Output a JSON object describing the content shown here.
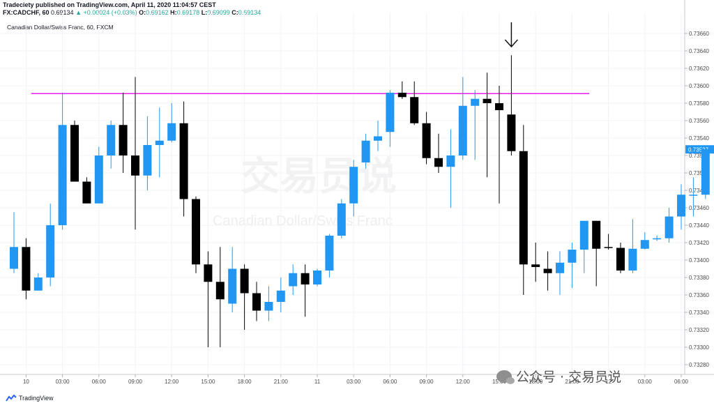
{
  "header": {
    "line1": "Tradeciety published on TradingView.com, April 11, 2020 11:04:57 CEST",
    "symbol": "FX:CADCHF, 60",
    "price": "0.69134",
    "change": "▲ +0.00024 (+0.03%)",
    "o_label": "O:",
    "o_value": "0.69162",
    "h_label": "H:",
    "h_value": "0.69178",
    "l_label": "L:",
    "l_value": "0.69099",
    "c_label": "C:",
    "c_value": "0.69134"
  },
  "chart_title": "Canadian Dollar/Swiss Franc, 60, FXCM",
  "center_watermark_cn": "交易员说",
  "center_watermark_en": "Canadian Dollar/Swiss Franc",
  "footer": {
    "brand": "TradingView"
  },
  "wechat_watermark": "公众号 · 交易员说",
  "colors": {
    "up": "#2196f3",
    "down": "#000000",
    "line": "#e91ee9",
    "price_tag": "#2196f3"
  },
  "chart_data": {
    "type": "candlestick",
    "title": "Canadian Dollar/Swiss Franc, 60, FXCM",
    "ylim": [
      0.73275,
      0.73675
    ],
    "y_ticks": [
      "0.73660",
      "0.73640",
      "0.73620",
      "0.73600",
      "0.73580",
      "0.73560",
      "0.73540",
      "0.73520",
      "0.73500",
      "0.73480",
      "0.73460",
      "0.73440",
      "0.73420",
      "0.73400",
      "0.73380",
      "0.73360",
      "0.73340",
      "0.73320",
      "0.73300",
      "0.73280"
    ],
    "x_ticks": [
      {
        "label": "10",
        "i": 1
      },
      {
        "label": "03:00",
        "i": 4
      },
      {
        "label": "06:00",
        "i": 7
      },
      {
        "label": "09:00",
        "i": 10
      },
      {
        "label": "12:00",
        "i": 13
      },
      {
        "label": "15:00",
        "i": 16
      },
      {
        "label": "18:00",
        "i": 19
      },
      {
        "label": "21:00",
        "i": 22
      },
      {
        "label": "11",
        "i": 25
      },
      {
        "label": "03:00",
        "i": 28
      },
      {
        "label": "06:00",
        "i": 31
      },
      {
        "label": "09:00",
        "i": 34
      },
      {
        "label": "12:00",
        "i": 37
      },
      {
        "label": "15:00",
        "i": 40
      },
      {
        "label": "18:00",
        "i": 43
      },
      {
        "label": "21:00",
        "i": 46
      },
      {
        "label": "12",
        "i": 49
      },
      {
        "label": "03:00",
        "i": 52
      },
      {
        "label": "06:00",
        "i": 55
      }
    ],
    "last_price": "0.73527",
    "horizontal_line": {
      "value": 0.73591,
      "from_index": 2,
      "to_index": 48
    },
    "arrow_index": 41,
    "candles": [
      {
        "o": 0.7339,
        "h": 0.73455,
        "l": 0.73385,
        "c": 0.73415
      },
      {
        "o": 0.73415,
        "h": 0.73425,
        "l": 0.73355,
        "c": 0.73365
      },
      {
        "o": 0.73365,
        "h": 0.73385,
        "l": 0.73365,
        "c": 0.7338
      },
      {
        "o": 0.7338,
        "h": 0.73465,
        "l": 0.7337,
        "c": 0.7344
      },
      {
        "o": 0.7344,
        "h": 0.73592,
        "l": 0.73435,
        "c": 0.73555
      },
      {
        "o": 0.73555,
        "h": 0.7356,
        "l": 0.7349,
        "c": 0.7349
      },
      {
        "o": 0.7349,
        "h": 0.73495,
        "l": 0.73465,
        "c": 0.73465
      },
      {
        "o": 0.73465,
        "h": 0.7353,
        "l": 0.73465,
        "c": 0.7352
      },
      {
        "o": 0.7352,
        "h": 0.7356,
        "l": 0.73505,
        "c": 0.73555
      },
      {
        "o": 0.73555,
        "h": 0.73592,
        "l": 0.735,
        "c": 0.7352
      },
      {
        "o": 0.7352,
        "h": 0.7361,
        "l": 0.73435,
        "c": 0.73497
      },
      {
        "o": 0.73497,
        "h": 0.73565,
        "l": 0.7348,
        "c": 0.73532
      },
      {
        "o": 0.73532,
        "h": 0.73575,
        "l": 0.73495,
        "c": 0.73537
      },
      {
        "o": 0.73537,
        "h": 0.7358,
        "l": 0.73535,
        "c": 0.73557
      },
      {
        "o": 0.73557,
        "h": 0.73582,
        "l": 0.7345,
        "c": 0.7347
      },
      {
        "o": 0.7347,
        "h": 0.73473,
        "l": 0.73385,
        "c": 0.73395
      },
      {
        "o": 0.73395,
        "h": 0.7341,
        "l": 0.733,
        "c": 0.73375
      },
      {
        "o": 0.73375,
        "h": 0.73415,
        "l": 0.733,
        "c": 0.73355
      },
      {
        "o": 0.7335,
        "h": 0.73415,
        "l": 0.7334,
        "c": 0.7339
      },
      {
        "o": 0.7339,
        "h": 0.73395,
        "l": 0.7332,
        "c": 0.73362
      },
      {
        "o": 0.73362,
        "h": 0.73375,
        "l": 0.7333,
        "c": 0.73342
      },
      {
        "o": 0.73342,
        "h": 0.7337,
        "l": 0.7333,
        "c": 0.73352
      },
      {
        "o": 0.73352,
        "h": 0.7338,
        "l": 0.7334,
        "c": 0.73365
      },
      {
        "o": 0.7337,
        "h": 0.73395,
        "l": 0.7336,
        "c": 0.73385
      },
      {
        "o": 0.73385,
        "h": 0.73395,
        "l": 0.73335,
        "c": 0.73372
      },
      {
        "o": 0.73372,
        "h": 0.7339,
        "l": 0.7337,
        "c": 0.73388
      },
      {
        "o": 0.73388,
        "h": 0.7343,
        "l": 0.7338,
        "c": 0.73428
      },
      {
        "o": 0.73428,
        "h": 0.7347,
        "l": 0.73425,
        "c": 0.73465
      },
      {
        "o": 0.73465,
        "h": 0.73515,
        "l": 0.7345,
        "c": 0.73507
      },
      {
        "o": 0.73512,
        "h": 0.73545,
        "l": 0.73505,
        "c": 0.73537
      },
      {
        "o": 0.73537,
        "h": 0.7356,
        "l": 0.73525,
        "c": 0.73542
      },
      {
        "o": 0.73547,
        "h": 0.73595,
        "l": 0.7353,
        "c": 0.73592
      },
      {
        "o": 0.73592,
        "h": 0.73605,
        "l": 0.73585,
        "c": 0.73587
      },
      {
        "o": 0.73587,
        "h": 0.73605,
        "l": 0.73555,
        "c": 0.73557
      },
      {
        "o": 0.73557,
        "h": 0.7357,
        "l": 0.7351,
        "c": 0.73517
      },
      {
        "o": 0.73517,
        "h": 0.73545,
        "l": 0.735,
        "c": 0.73507
      },
      {
        "o": 0.73507,
        "h": 0.7355,
        "l": 0.7346,
        "c": 0.7352
      },
      {
        "o": 0.7352,
        "h": 0.7361,
        "l": 0.73515,
        "c": 0.73577
      },
      {
        "o": 0.73577,
        "h": 0.73595,
        "l": 0.73515,
        "c": 0.73585
      },
      {
        "o": 0.73585,
        "h": 0.73615,
        "l": 0.73495,
        "c": 0.7358
      },
      {
        "o": 0.7358,
        "h": 0.736,
        "l": 0.73465,
        "c": 0.73572
      },
      {
        "o": 0.73567,
        "h": 0.73635,
        "l": 0.7352,
        "c": 0.73525
      },
      {
        "o": 0.73525,
        "h": 0.73555,
        "l": 0.7336,
        "c": 0.73395
      },
      {
        "o": 0.73395,
        "h": 0.7342,
        "l": 0.73375,
        "c": 0.73392
      },
      {
        "o": 0.7339,
        "h": 0.7341,
        "l": 0.73365,
        "c": 0.73385
      },
      {
        "o": 0.73385,
        "h": 0.7341,
        "l": 0.7336,
        "c": 0.73397
      },
      {
        "o": 0.73397,
        "h": 0.7342,
        "l": 0.73368,
        "c": 0.73412
      },
      {
        "o": 0.73412,
        "h": 0.73445,
        "l": 0.73385,
        "c": 0.73445
      },
      {
        "o": 0.73445,
        "h": 0.73445,
        "l": 0.7337,
        "c": 0.73413
      },
      {
        "o": 0.73415,
        "h": 0.7343,
        "l": 0.73412,
        "c": 0.73414
      },
      {
        "o": 0.73414,
        "h": 0.7342,
        "l": 0.73385,
        "c": 0.73388
      },
      {
        "o": 0.73388,
        "h": 0.73447,
        "l": 0.73385,
        "c": 0.73413
      },
      {
        "o": 0.73413,
        "h": 0.73432,
        "l": 0.73412,
        "c": 0.73423
      },
      {
        "o": 0.73424,
        "h": 0.73428,
        "l": 0.73422,
        "c": 0.73425
      },
      {
        "o": 0.73425,
        "h": 0.7346,
        "l": 0.7342,
        "c": 0.7345
      },
      {
        "o": 0.7345,
        "h": 0.73487,
        "l": 0.73435,
        "c": 0.73475
      },
      {
        "o": 0.73475,
        "h": 0.73495,
        "l": 0.7345,
        "c": 0.73475
      },
      {
        "o": 0.73475,
        "h": 0.7353,
        "l": 0.7347,
        "c": 0.73527
      }
    ]
  }
}
